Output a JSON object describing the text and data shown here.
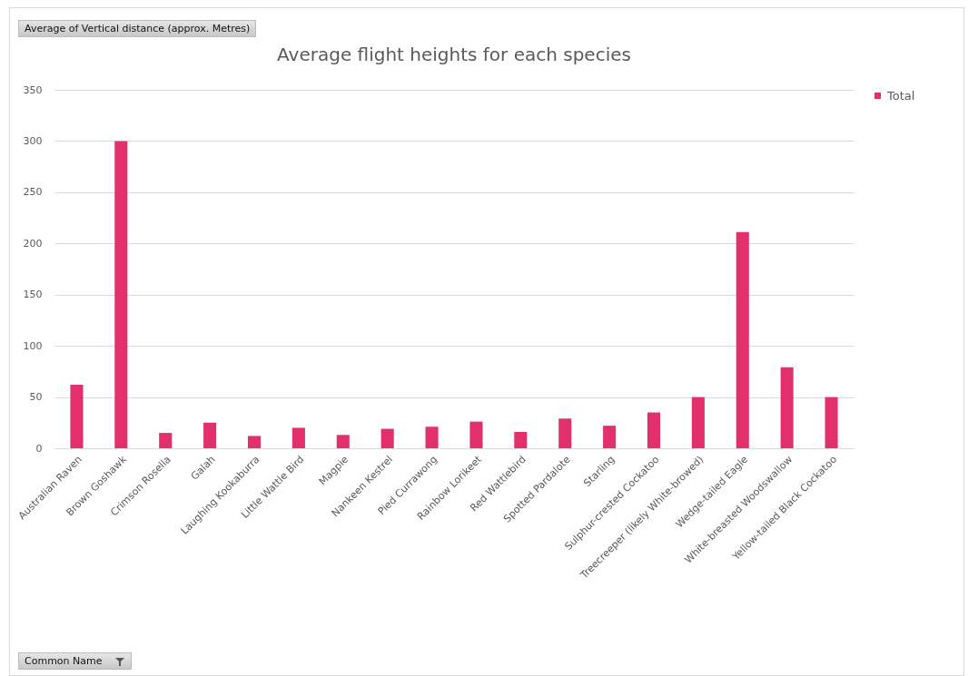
{
  "chart_data": {
    "type": "bar",
    "title": "Average flight heights for each species",
    "categories": [
      "Australian Raven",
      "Brown Goshawk",
      "Crimson Rosella",
      "Galah",
      "Laughing Kookaburra",
      "Little Wattle Bird",
      "Magpie",
      "Nankeen Kestrel",
      "Pied Currawong",
      "Rainbow Lorikeet",
      "Red Wattlebird",
      "Spotted Pardalote",
      "Starling",
      "Sulphur-crested Cockatoo",
      "Treecreeper (likely White-browed)",
      "Wedge-tailed Eagle",
      "White-breasted Woodswallow",
      "Yellow-tailed Black Cockatoo"
    ],
    "series": [
      {
        "name": "Total",
        "color": "#e2306b",
        "values": [
          62,
          300,
          15,
          25,
          12,
          20,
          13,
          19,
          21,
          26,
          16,
          29,
          22,
          35,
          50,
          211,
          79,
          50
        ]
      }
    ],
    "ylim": [
      0,
      350
    ],
    "yticks": [
      0,
      50,
      100,
      150,
      200,
      250,
      300,
      350
    ],
    "grid": "y",
    "legend": "right",
    "annotations": [
      "Average of Vertical distance (approx. Metres)",
      "Common Name"
    ]
  }
}
